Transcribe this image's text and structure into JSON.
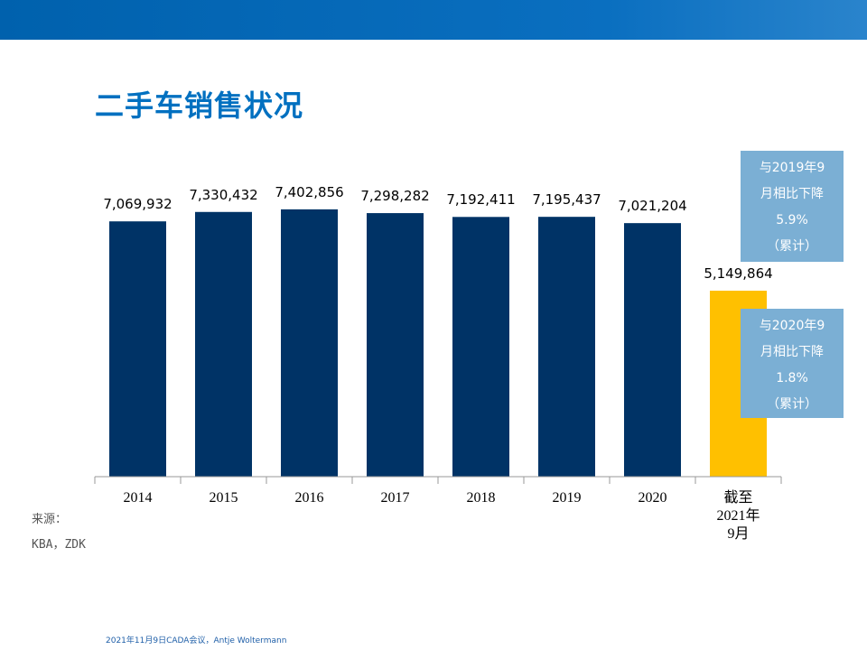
{
  "header": {
    "title": "二手车销售状况"
  },
  "chart_data": {
    "type": "bar",
    "categories": [
      "2014",
      "2015",
      "2016",
      "2017",
      "2018",
      "2019",
      "2020",
      "截至\n2021年\n9月"
    ],
    "values": [
      7069932,
      7330432,
      7402856,
      7298282,
      7192411,
      7195437,
      7021204,
      5149864
    ],
    "value_labels": [
      "7,069,932",
      "7,330,432",
      "7,402,856",
      "7,298,282",
      "7,192,411",
      "7,195,437",
      "7,021,204",
      "5,149,864"
    ],
    "colors": [
      "#003366",
      "#003366",
      "#003366",
      "#003366",
      "#003366",
      "#003366",
      "#003366",
      "#FFC000"
    ],
    "ylim": [
      0,
      8000000
    ],
    "annotations": [
      {
        "lines": [
          "与2019年9",
          "月相比下降",
          "5.9%",
          "（累计）"
        ]
      },
      {
        "lines": [
          "与2020年9",
          "月相比下降",
          "1.8%",
          "（累计）"
        ]
      }
    ]
  },
  "source": {
    "label": "来源：",
    "text": "KBA，ZDK"
  },
  "footer": "2021年11月9日CADA会议，Antje Woltermann"
}
